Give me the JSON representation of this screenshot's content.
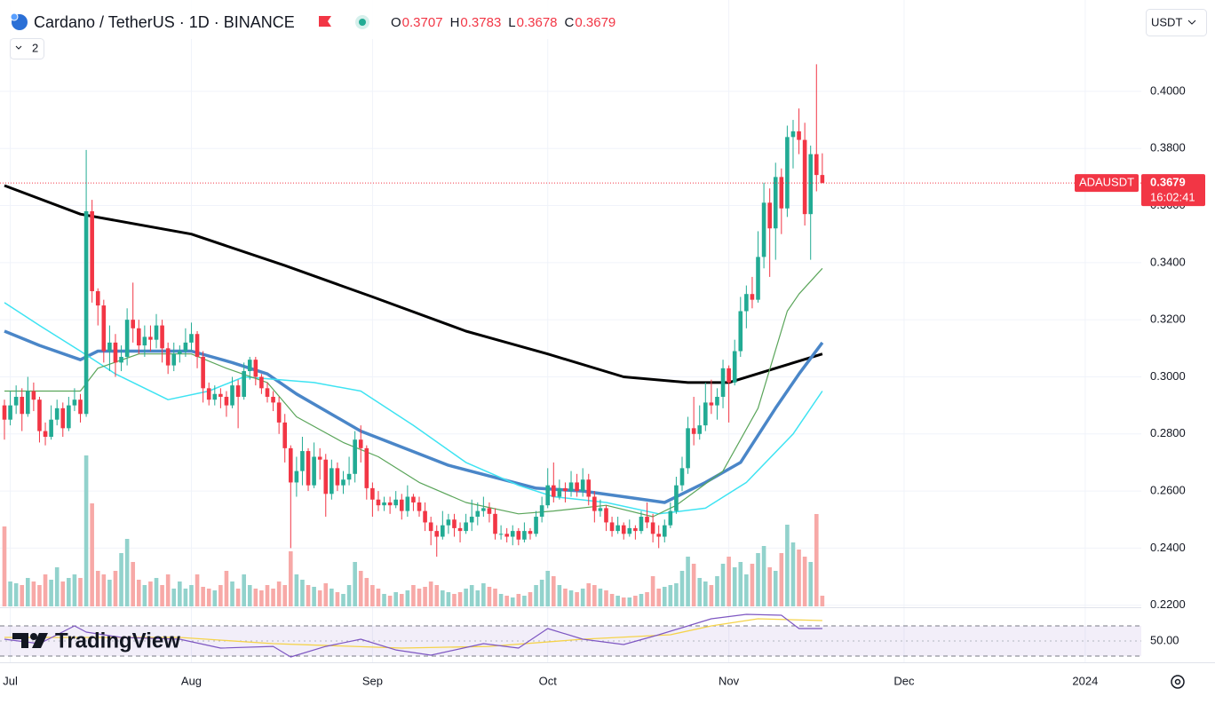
{
  "chart_data": {
    "type": "candlestick",
    "title": "Cardano / TetherUS · 1D · BINANCE",
    "ohlc_labels": [
      "O",
      "H",
      "L",
      "C"
    ],
    "indicators_button": 2,
    "currency_button": "USDT",
    "symbol_tag": "ADAUSDT",
    "countdown": "16:02:41",
    "brand": "TradingView",
    "up_color": "#22ab94",
    "down_color": "#f23645",
    "volume_up_color": "#92d2cc",
    "volume_down_color": "#f7a9a7",
    "x": [
      0,
      1,
      2,
      3,
      4,
      5,
      6,
      7,
      8,
      9,
      10,
      11,
      12,
      13,
      14,
      15,
      16,
      17,
      18,
      19,
      20,
      21,
      22,
      23,
      24,
      25,
      26,
      27,
      28,
      29,
      30,
      31,
      32,
      33,
      34,
      35,
      36,
      37,
      38,
      39,
      40,
      41,
      42,
      43,
      44,
      45,
      46,
      47,
      48,
      49,
      50,
      51,
      52,
      53,
      54,
      55,
      56,
      57,
      58,
      59,
      60,
      61,
      62,
      63,
      64,
      65,
      66,
      67,
      68,
      69,
      70,
      71,
      72,
      73,
      74,
      75,
      76,
      77,
      78,
      79,
      80,
      81,
      82,
      83,
      84,
      85,
      86,
      87,
      88,
      89,
      90,
      91,
      92,
      93,
      94,
      95,
      96,
      97,
      98,
      99,
      100,
      101,
      102,
      103,
      104,
      105,
      106,
      107,
      108,
      109,
      110,
      111,
      112,
      113,
      114,
      115,
      116,
      117,
      118,
      119,
      120,
      121,
      122,
      123,
      124,
      125,
      126,
      127,
      128,
      129,
      130,
      131,
      132,
      133,
      134,
      135,
      136,
      137,
      138,
      139,
      140
    ],
    "open": [
      0.29,
      0.285,
      0.29,
      0.293,
      0.287,
      0.295,
      0.292,
      0.281,
      0.279,
      0.285,
      0.289,
      0.282,
      0.29,
      0.292,
      0.287,
      0.358,
      0.33,
      0.325,
      0.309,
      0.312,
      0.305,
      0.307,
      0.32,
      0.317,
      0.311,
      0.314,
      0.313,
      0.318,
      0.31,
      0.304,
      0.308,
      0.309,
      0.312,
      0.315,
      0.307,
      0.296,
      0.292,
      0.294,
      0.293,
      0.29,
      0.297,
      0.293,
      0.302,
      0.306,
      0.3,
      0.296,
      0.293,
      0.291,
      0.284,
      0.275,
      0.263,
      0.267,
      0.274,
      0.262,
      0.272,
      0.271,
      0.259,
      0.268,
      0.262,
      0.264,
      0.266,
      0.278,
      0.275,
      0.261,
      0.257,
      0.255,
      0.256,
      0.255,
      0.257,
      0.253,
      0.258,
      0.256,
      0.253,
      0.249,
      0.246,
      0.244,
      0.248,
      0.25,
      0.247,
      0.246,
      0.249,
      0.251,
      0.253,
      0.254,
      0.252,
      0.245,
      0.245,
      0.244,
      0.246,
      0.243,
      0.246,
      0.245,
      0.251,
      0.255,
      0.262,
      0.258,
      0.261,
      0.26,
      0.263,
      0.26,
      0.264,
      0.258,
      0.253,
      0.254,
      0.249,
      0.246,
      0.248,
      0.245,
      0.247,
      0.246,
      0.251,
      0.249,
      0.245,
      0.244,
      0.248,
      0.253,
      0.262,
      0.268,
      0.282,
      0.28,
      0.283,
      0.291,
      0.29,
      0.293,
      0.303,
      0.298,
      0.309,
      0.323,
      0.329,
      0.327,
      0.342,
      0.361,
      0.352,
      0.37,
      0.359,
      0.384,
      0.386,
      0.383,
      0.357,
      0.378,
      0.3707
    ],
    "high": [
      0.292,
      0.295,
      0.297,
      0.296,
      0.3,
      0.298,
      0.293,
      0.284,
      0.29,
      0.292,
      0.291,
      0.293,
      0.296,
      0.294,
      0.3795,
      0.362,
      0.331,
      0.327,
      0.318,
      0.315,
      0.311,
      0.324,
      0.333,
      0.32,
      0.318,
      0.318,
      0.322,
      0.32,
      0.312,
      0.312,
      0.311,
      0.317,
      0.319,
      0.316,
      0.309,
      0.298,
      0.297,
      0.296,
      0.295,
      0.3,
      0.299,
      0.305,
      0.307,
      0.307,
      0.301,
      0.298,
      0.295,
      0.293,
      0.287,
      0.276,
      0.272,
      0.279,
      0.275,
      0.277,
      0.275,
      0.273,
      0.271,
      0.27,
      0.267,
      0.272,
      0.281,
      0.283,
      0.276,
      0.263,
      0.26,
      0.258,
      0.258,
      0.26,
      0.259,
      0.262,
      0.259,
      0.258,
      0.256,
      0.251,
      0.248,
      0.253,
      0.252,
      0.252,
      0.249,
      0.252,
      0.257,
      0.256,
      0.258,
      0.256,
      0.254,
      0.248,
      0.247,
      0.248,
      0.247,
      0.249,
      0.247,
      0.253,
      0.258,
      0.268,
      0.27,
      0.264,
      0.263,
      0.267,
      0.266,
      0.268,
      0.266,
      0.26,
      0.257,
      0.255,
      0.251,
      0.251,
      0.249,
      0.25,
      0.248,
      0.253,
      0.256,
      0.252,
      0.248,
      0.25,
      0.256,
      0.265,
      0.272,
      0.286,
      0.293,
      0.29,
      0.298,
      0.299,
      0.296,
      0.306,
      0.304,
      0.313,
      0.328,
      0.332,
      0.335,
      0.351,
      0.368,
      0.366,
      0.375,
      0.373,
      0.388,
      0.39,
      0.394,
      0.389,
      0.381,
      0.4095,
      0.3783
    ],
    "low": [
      0.278,
      0.283,
      0.287,
      0.281,
      0.286,
      0.288,
      0.277,
      0.276,
      0.278,
      0.283,
      0.279,
      0.281,
      0.288,
      0.284,
      0.286,
      0.326,
      0.318,
      0.305,
      0.302,
      0.3,
      0.302,
      0.304,
      0.312,
      0.308,
      0.307,
      0.309,
      0.31,
      0.305,
      0.301,
      0.302,
      0.305,
      0.307,
      0.309,
      0.303,
      0.291,
      0.29,
      0.29,
      0.289,
      0.286,
      0.289,
      0.282,
      0.292,
      0.299,
      0.297,
      0.294,
      0.291,
      0.288,
      0.28,
      0.27,
      0.24,
      0.258,
      0.262,
      0.26,
      0.261,
      0.264,
      0.251,
      0.257,
      0.26,
      0.259,
      0.262,
      0.263,
      0.27,
      0.257,
      0.251,
      0.253,
      0.253,
      0.252,
      0.254,
      0.25,
      0.251,
      0.253,
      0.251,
      0.246,
      0.241,
      0.237,
      0.243,
      0.245,
      0.244,
      0.242,
      0.245,
      0.246,
      0.248,
      0.251,
      0.249,
      0.243,
      0.243,
      0.242,
      0.241,
      0.241,
      0.242,
      0.243,
      0.244,
      0.249,
      0.254,
      0.256,
      0.257,
      0.256,
      0.258,
      0.258,
      0.258,
      0.255,
      0.249,
      0.251,
      0.246,
      0.244,
      0.245,
      0.243,
      0.244,
      0.243,
      0.245,
      0.247,
      0.242,
      0.24,
      0.242,
      0.247,
      0.252,
      0.26,
      0.266,
      0.276,
      0.278,
      0.281,
      0.287,
      0.285,
      0.289,
      0.284,
      0.297,
      0.307,
      0.317,
      0.324,
      0.326,
      0.338,
      0.335,
      0.341,
      0.35,
      0.356,
      0.373,
      0.378,
      0.353,
      0.341,
      0.365,
      0.3678
    ],
    "close": [
      0.285,
      0.29,
      0.293,
      0.287,
      0.295,
      0.292,
      0.281,
      0.279,
      0.285,
      0.289,
      0.282,
      0.29,
      0.292,
      0.287,
      0.358,
      0.33,
      0.325,
      0.309,
      0.312,
      0.305,
      0.307,
      0.32,
      0.317,
      0.311,
      0.314,
      0.313,
      0.318,
      0.31,
      0.304,
      0.308,
      0.309,
      0.312,
      0.315,
      0.307,
      0.296,
      0.292,
      0.294,
      0.293,
      0.29,
      0.297,
      0.293,
      0.302,
      0.306,
      0.3,
      0.296,
      0.293,
      0.291,
      0.284,
      0.275,
      0.263,
      0.267,
      0.274,
      0.262,
      0.272,
      0.271,
      0.259,
      0.268,
      0.262,
      0.264,
      0.266,
      0.278,
      0.275,
      0.261,
      0.257,
      0.255,
      0.256,
      0.255,
      0.257,
      0.253,
      0.258,
      0.256,
      0.253,
      0.249,
      0.246,
      0.244,
      0.248,
      0.25,
      0.247,
      0.246,
      0.249,
      0.251,
      0.253,
      0.254,
      0.252,
      0.245,
      0.245,
      0.244,
      0.246,
      0.243,
      0.246,
      0.245,
      0.251,
      0.255,
      0.262,
      0.258,
      0.261,
      0.26,
      0.263,
      0.26,
      0.264,
      0.258,
      0.253,
      0.254,
      0.249,
      0.246,
      0.248,
      0.245,
      0.247,
      0.246,
      0.251,
      0.249,
      0.245,
      0.244,
      0.248,
      0.253,
      0.262,
      0.268,
      0.282,
      0.28,
      0.283,
      0.291,
      0.29,
      0.293,
      0.303,
      0.298,
      0.309,
      0.323,
      0.329,
      0.327,
      0.342,
      0.361,
      0.352,
      0.37,
      0.359,
      0.384,
      0.386,
      0.383,
      0.357,
      0.378,
      0.3707,
      0.3679
    ],
    "volume": [
      45,
      14,
      13,
      12,
      16,
      14,
      12,
      18,
      15,
      22,
      14,
      16,
      18,
      16,
      85,
      58,
      20,
      18,
      15,
      20,
      30,
      38,
      25,
      15,
      12,
      14,
      16,
      12,
      18,
      10,
      14,
      10,
      12,
      18,
      11,
      10,
      9,
      12,
      20,
      14,
      10,
      18,
      12,
      10,
      9,
      12,
      10,
      14,
      12,
      31,
      18,
      15,
      12,
      11,
      9,
      13,
      10,
      8,
      7,
      12,
      25,
      20,
      16,
      12,
      10,
      7,
      6,
      8,
      7,
      9,
      12,
      10,
      11,
      14,
      12,
      9,
      8,
      7,
      8,
      10,
      12,
      9,
      13,
      11,
      10,
      7,
      6,
      5,
      7,
      6,
      8,
      12,
      15,
      20,
      17,
      12,
      10,
      9,
      8,
      10,
      13,
      12,
      10,
      9,
      7,
      6,
      5,
      5,
      6,
      7,
      8,
      17,
      10,
      11,
      12,
      13,
      20,
      28,
      24,
      16,
      14,
      12,
      17,
      24,
      28,
      22,
      25,
      18,
      24,
      30,
      34,
      22,
      20,
      30,
      46,
      36,
      32,
      28,
      25,
      52,
      6
    ],
    "vlim": [
      0,
      100
    ],
    "xlim": [
      -0.76,
      194.6
    ],
    "xticks": [
      {
        "value": 1,
        "label": "Jul"
      },
      {
        "value": 32,
        "label": "Aug"
      },
      {
        "value": 63,
        "label": "Sep"
      },
      {
        "value": 93,
        "label": "Oct"
      },
      {
        "value": 124,
        "label": "Nov"
      },
      {
        "value": 154,
        "label": "Dec"
      },
      {
        "value": 185,
        "label": "2024"
      }
    ],
    "ylim": [
      0.2196,
      0.432
    ],
    "yticks": [
      {
        "value": 0.22,
        "label": "0.2200"
      },
      {
        "value": 0.24,
        "label": "0.2400"
      },
      {
        "value": 0.26,
        "label": "0.2600"
      },
      {
        "value": 0.28,
        "label": "0.2800"
      },
      {
        "value": 0.3,
        "label": "0.3000"
      },
      {
        "value": 0.32,
        "label": "0.3200"
      },
      {
        "value": 0.34,
        "label": "0.3400"
      },
      {
        "value": 0.36,
        "label": "0.3600"
      },
      {
        "value": 0.38,
        "label": "0.3800"
      },
      {
        "value": 0.4,
        "label": "0.4000"
      }
    ],
    "moving_averages": [
      {
        "color": "#000000",
        "width": 3,
        "x": [
          0,
          13,
          32,
          48,
          63,
          79,
          93,
          106,
          117,
          124,
          132,
          140
        ],
        "values": [
          0.367,
          0.357,
          0.35,
          0.339,
          0.328,
          0.316,
          0.308,
          0.3,
          0.298,
          0.298,
          0.303,
          0.308
        ]
      },
      {
        "color": "#4a86c8",
        "width": 3.5,
        "x": [
          0,
          6,
          13,
          16,
          32,
          39,
          45,
          50,
          61,
          76,
          91,
          99,
          106,
          113,
          120,
          126,
          132,
          136,
          140
        ],
        "values": [
          0.316,
          0.311,
          0.306,
          0.309,
          0.309,
          0.305,
          0.301,
          0.294,
          0.281,
          0.269,
          0.261,
          0.26,
          0.258,
          0.256,
          0.263,
          0.27,
          0.289,
          0.301,
          0.312
        ]
      },
      {
        "color": "#3ee3f2",
        "width": 1.5,
        "x": [
          0,
          6,
          13,
          19,
          28,
          35,
          41,
          53,
          61,
          70,
          79,
          88,
          94,
          103,
          112,
          120,
          127,
          135,
          140
        ],
        "values": [
          0.326,
          0.318,
          0.309,
          0.301,
          0.292,
          0.295,
          0.3,
          0.298,
          0.295,
          0.283,
          0.27,
          0.262,
          0.258,
          0.256,
          0.252,
          0.254,
          0.263,
          0.28,
          0.295
        ]
      },
      {
        "color": "#5aa55a",
        "width": 1.2,
        "x": [
          0,
          6,
          13,
          16,
          23,
          32,
          38,
          45,
          50,
          58,
          64,
          71,
          79,
          88,
          94,
          103,
          111,
          115,
          123,
          129,
          134,
          136,
          140
        ],
        "values": [
          0.295,
          0.295,
          0.295,
          0.303,
          0.308,
          0.308,
          0.303,
          0.298,
          0.286,
          0.277,
          0.272,
          0.263,
          0.256,
          0.252,
          0.253,
          0.255,
          0.251,
          0.255,
          0.267,
          0.289,
          0.323,
          0.329,
          0.338
        ]
      }
    ],
    "rsi": {
      "ylim": [
        26.5,
        90
      ],
      "yticks": [
        {
          "value": 50,
          "label": "50.00"
        }
      ],
      "band": [
        30,
        70
      ],
      "line": {
        "color": "#7e57c2",
        "x": [
          0,
          6,
          12,
          14,
          20,
          30,
          37,
          46,
          49,
          55,
          61,
          67,
          73,
          82,
          88,
          93,
          99,
          106,
          112,
          118,
          121,
          127,
          133,
          136,
          140
        ],
        "values": [
          52.4,
          46.5,
          70,
          61.8,
          54.7,
          52.4,
          40.6,
          42.9,
          28.8,
          42.9,
          52.4,
          38.2,
          31.2,
          46.5,
          40.6,
          66.5,
          52.4,
          45.3,
          58.2,
          72.4,
          79.4,
          85.3,
          84.1,
          66.5,
          66.5
        ]
      },
      "ma": {
        "color": "#f5d34a",
        "x": [
          0,
          30,
          46,
          68,
          83,
          99,
          114,
          121,
          129,
          140
        ],
        "values": [
          54.7,
          54.7,
          46.5,
          40.6,
          42.9,
          52.4,
          58.2,
          70,
          79.4,
          77.1
        ]
      }
    }
  }
}
